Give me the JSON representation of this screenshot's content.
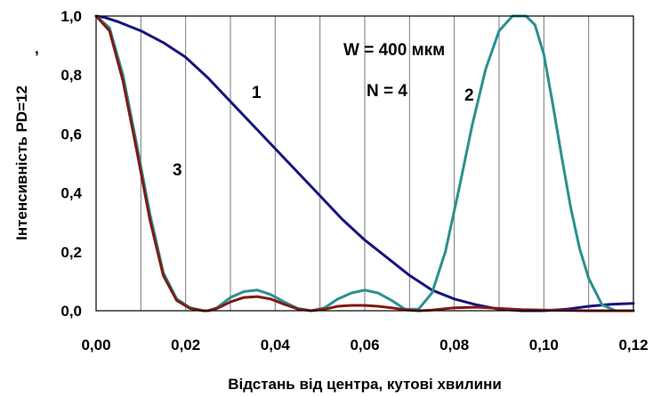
{
  "chart_data": {
    "type": "line",
    "xlabel": "Відстань від центра, кутові хвилини",
    "ylabel": "Інтенсивність PD=12",
    "xlim": [
      0,
      0.12
    ],
    "ylim": [
      0,
      1.0
    ],
    "x_ticks": [
      "0,00",
      "0,02",
      "0,04",
      "0,06",
      "0,08",
      "0,10",
      "0,12"
    ],
    "y_ticks": [
      "0,0",
      "0,2",
      "0,4",
      "0,6",
      "0,8",
      "1,0"
    ],
    "grid": "vertical",
    "annotations": [
      {
        "text": "W = 400 мкм"
      },
      {
        "text": "N = 4"
      },
      {
        "text": "1"
      },
      {
        "text": "2"
      },
      {
        "text": "3"
      },
      {
        "text": ","
      }
    ],
    "series": [
      {
        "name": "1",
        "color": "#16137e",
        "x": [
          0,
          0.002,
          0.005,
          0.01,
          0.015,
          0.02,
          0.025,
          0.03,
          0.035,
          0.04,
          0.045,
          0.05,
          0.055,
          0.06,
          0.065,
          0.07,
          0.075,
          0.08,
          0.085,
          0.09,
          0.095,
          0.1,
          0.105,
          0.11,
          0.115,
          0.12
        ],
        "y": [
          1.0,
          0.995,
          0.98,
          0.95,
          0.91,
          0.86,
          0.79,
          0.71,
          0.63,
          0.55,
          0.47,
          0.39,
          0.31,
          0.24,
          0.18,
          0.12,
          0.07,
          0.04,
          0.02,
          0.005,
          0.0,
          0.0,
          0.005,
          0.015,
          0.022,
          0.025
        ]
      },
      {
        "name": "2",
        "color": "#2a9090",
        "x": [
          0,
          0.003,
          0.006,
          0.009,
          0.012,
          0.015,
          0.018,
          0.021,
          0.024,
          0.025,
          0.027,
          0.03,
          0.033,
          0.036,
          0.039,
          0.042,
          0.045,
          0.048,
          0.051,
          0.054,
          0.057,
          0.06,
          0.063,
          0.066,
          0.069,
          0.072,
          0.075,
          0.078,
          0.081,
          0.084,
          0.087,
          0.09,
          0.093,
          0.095,
          0.096,
          0.098,
          0.1,
          0.102,
          0.104,
          0.106,
          0.108,
          0.11,
          0.113,
          0.116,
          0.12
        ],
        "y": [
          1.0,
          0.96,
          0.8,
          0.57,
          0.33,
          0.13,
          0.04,
          0.01,
          0.0,
          0.0,
          0.01,
          0.045,
          0.065,
          0.07,
          0.055,
          0.03,
          0.008,
          0.0,
          0.01,
          0.04,
          0.06,
          0.07,
          0.06,
          0.035,
          0.005,
          0.005,
          0.06,
          0.2,
          0.41,
          0.63,
          0.82,
          0.95,
          1.0,
          1.0,
          1.0,
          0.97,
          0.87,
          0.7,
          0.52,
          0.35,
          0.21,
          0.11,
          0.02,
          0.0,
          0.0
        ]
      },
      {
        "name": "3",
        "color": "#7e1a14",
        "x": [
          0,
          0.003,
          0.006,
          0.009,
          0.012,
          0.015,
          0.018,
          0.021,
          0.024,
          0.025,
          0.027,
          0.03,
          0.033,
          0.036,
          0.039,
          0.042,
          0.045,
          0.048,
          0.051,
          0.054,
          0.057,
          0.06,
          0.063,
          0.066,
          0.069,
          0.072,
          0.075,
          0.08,
          0.085,
          0.09,
          0.095,
          0.1,
          0.11,
          0.12
        ],
        "y": [
          1.0,
          0.95,
          0.78,
          0.55,
          0.31,
          0.12,
          0.035,
          0.008,
          0.0,
          0.0,
          0.008,
          0.03,
          0.045,
          0.048,
          0.04,
          0.022,
          0.006,
          0.0,
          0.005,
          0.015,
          0.018,
          0.018,
          0.015,
          0.01,
          0.003,
          0.0,
          0.002,
          0.01,
          0.012,
          0.008,
          0.004,
          0.002,
          0.0,
          0.0
        ]
      }
    ]
  }
}
